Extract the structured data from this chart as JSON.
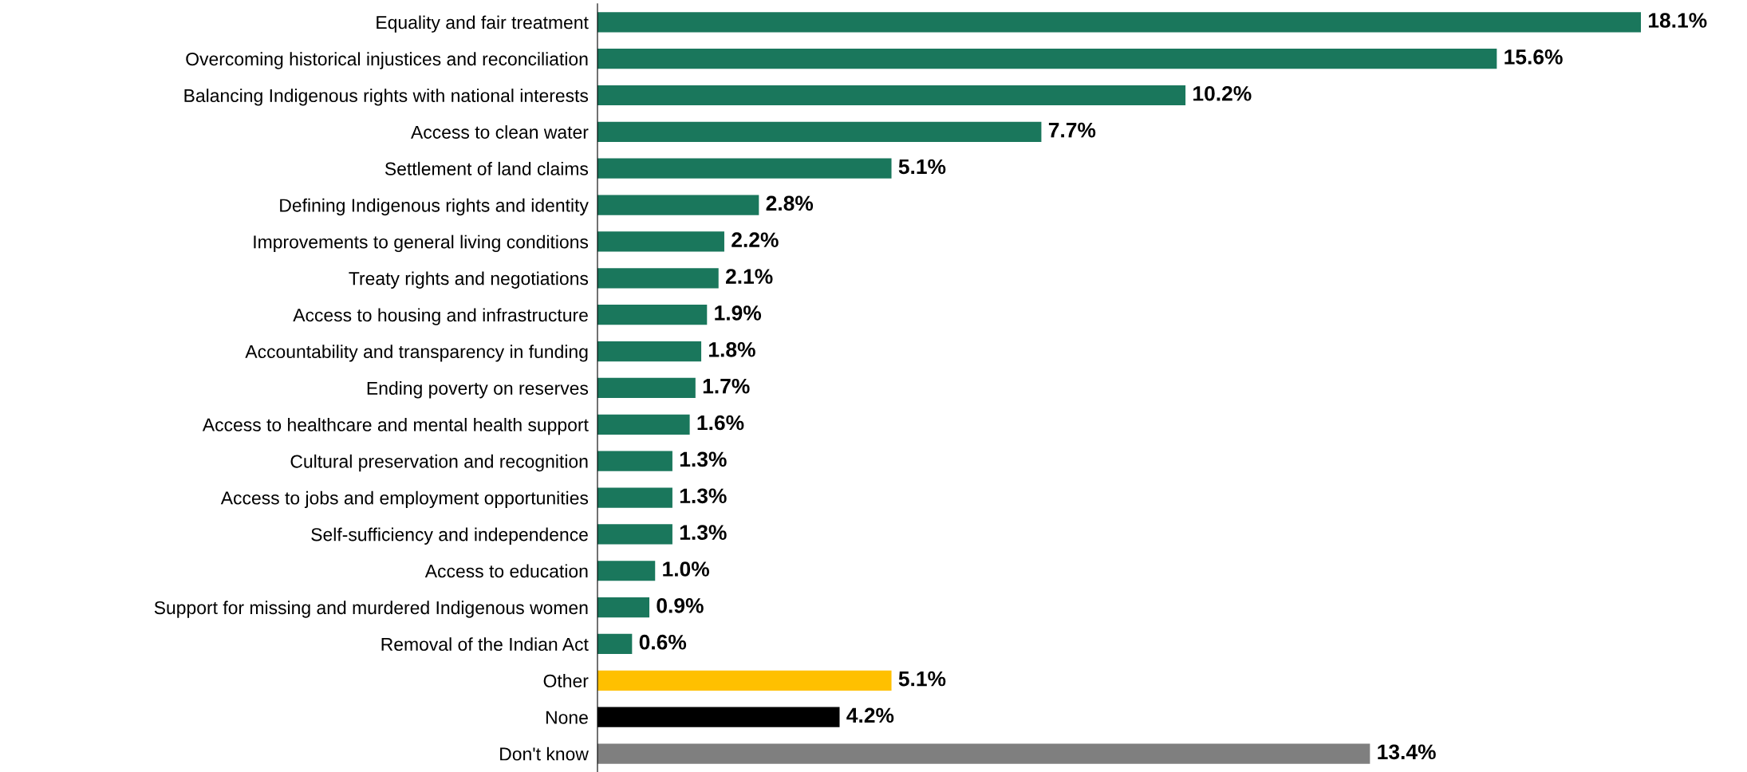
{
  "chart_data": {
    "type": "bar",
    "orientation": "horizontal",
    "data_labels": true,
    "grid": false,
    "legend": false,
    "categories": [
      "Equality and fair treatment",
      "Overcoming historical injustices and reconciliation",
      "Balancing Indigenous rights with national interests",
      "Access to clean water",
      "Settlement of land claims",
      "Defining Indigenous rights and identity",
      "Improvements to general living conditions",
      "Treaty rights and negotiations",
      "Access to housing and infrastructure",
      "Accountability and transparency in funding",
      "Ending poverty on reserves",
      "Access to healthcare and mental health support",
      "Cultural preservation and recognition",
      "Access to jobs and employment opportunities",
      "Self-sufficiency and independence",
      "Access to education",
      "Support for missing and murdered Indigenous women",
      "Removal of the Indian Act",
      "Other",
      "None",
      "Don't know"
    ],
    "values": [
      18.1,
      15.6,
      10.2,
      7.7,
      5.1,
      2.8,
      2.2,
      2.1,
      1.9,
      1.8,
      1.7,
      1.6,
      1.3,
      1.3,
      1.3,
      1.0,
      0.9,
      0.6,
      5.1,
      4.2,
      13.4
    ],
    "value_labels": [
      "18.1%",
      "15.6%",
      "10.2%",
      "7.7%",
      "5.1%",
      "2.8%",
      "2.2%",
      "2.1%",
      "1.9%",
      "1.8%",
      "1.7%",
      "1.6%",
      "1.3%",
      "1.3%",
      "1.3%",
      "1.0%",
      "0.9%",
      "0.6%",
      "5.1%",
      "4.2%",
      "13.4%"
    ],
    "colors": [
      "#1a775c",
      "#1a775c",
      "#1a775c",
      "#1a775c",
      "#1a775c",
      "#1a775c",
      "#1a775c",
      "#1a775c",
      "#1a775c",
      "#1a775c",
      "#1a775c",
      "#1a775c",
      "#1a775c",
      "#1a775c",
      "#1a775c",
      "#1a775c",
      "#1a775c",
      "#1a775c",
      "#ffc000",
      "#000000",
      "#7f7f7f"
    ]
  }
}
